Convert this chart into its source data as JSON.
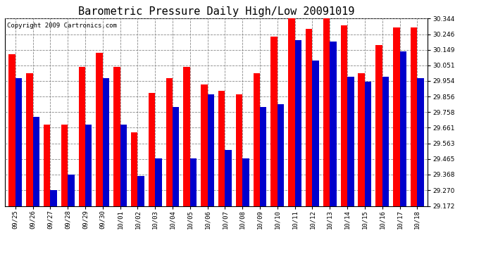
{
  "title": "Barometric Pressure Daily High/Low 20091019",
  "copyright": "Copyright 2009 Cartronics.com",
  "dates": [
    "09/25",
    "09/26",
    "09/27",
    "09/28",
    "09/29",
    "09/30",
    "10/01",
    "10/02",
    "10/03",
    "10/04",
    "10/05",
    "10/06",
    "10/07",
    "10/08",
    "10/09",
    "10/10",
    "10/11",
    "10/12",
    "10/13",
    "10/14",
    "10/15",
    "10/16",
    "10/17",
    "10/18"
  ],
  "highs": [
    30.12,
    30.0,
    29.68,
    29.68,
    30.04,
    30.13,
    30.04,
    29.63,
    29.88,
    29.97,
    30.04,
    29.93,
    29.89,
    29.87,
    30.0,
    30.23,
    30.36,
    30.28,
    30.37,
    30.3,
    30.0,
    30.18,
    30.29,
    30.29
  ],
  "lows": [
    29.97,
    29.73,
    29.27,
    29.37,
    29.68,
    29.97,
    29.68,
    29.36,
    29.47,
    29.79,
    29.47,
    29.87,
    29.52,
    29.47,
    29.79,
    29.81,
    30.21,
    30.08,
    30.2,
    29.98,
    29.95,
    29.98,
    30.14,
    29.97
  ],
  "ymin": 29.172,
  "ymax": 30.344,
  "yticks": [
    29.172,
    29.27,
    29.368,
    29.465,
    29.563,
    29.661,
    29.758,
    29.856,
    29.954,
    30.051,
    30.149,
    30.246,
    30.344
  ],
  "bar_width": 0.38,
  "high_color": "#ff0000",
  "low_color": "#0000cc",
  "bg_color": "#ffffff",
  "grid_color": "#888888",
  "title_fontsize": 11,
  "tick_fontsize": 6.5,
  "copyright_fontsize": 6.5
}
